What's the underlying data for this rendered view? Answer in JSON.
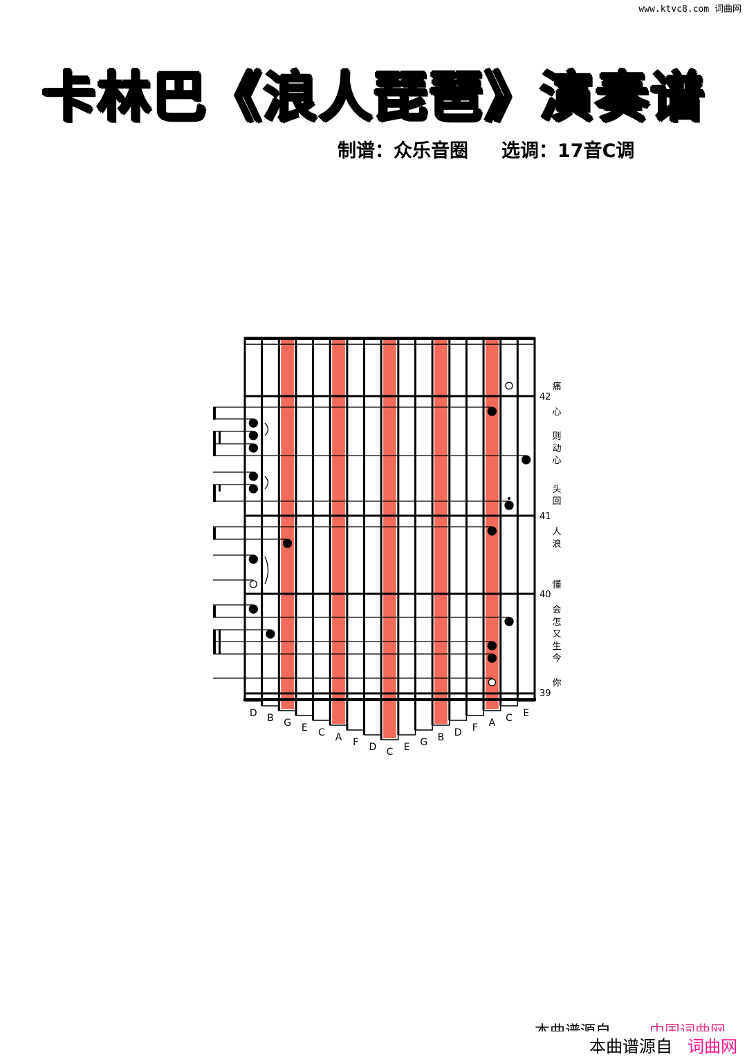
{
  "header": {
    "site": "www.ktvc8.com 词曲网"
  },
  "title": "卡林巴《浪人琵琶》演奏谱",
  "credits": {
    "arranger": "制谱：众乐音圈",
    "key": "选调：17音C调"
  },
  "score": {
    "keys": [
      "D",
      "B",
      "G",
      "E",
      "C",
      "A",
      "F",
      "D",
      "C",
      "E",
      "G",
      "B",
      "D",
      "F",
      "A",
      "C",
      "E"
    ],
    "highlighted_keys": [
      2,
      5,
      8,
      11,
      14
    ],
    "highlight_color": "#f26b5b",
    "measures": [
      "42",
      "41",
      "40",
      "39"
    ],
    "notes": [
      {
        "tine": 15,
        "type": "hollow"
      },
      {
        "tine": 14,
        "type": "filled"
      },
      {
        "tine": 0,
        "type": "filled"
      },
      {
        "tine": 0,
        "type": "filled"
      },
      {
        "tine": 0,
        "type": "filled"
      },
      {
        "tine": 16,
        "type": "filled"
      },
      {
        "tine": 0,
        "type": "filled"
      },
      {
        "tine": 0,
        "type": "filled"
      },
      {
        "tine": 15,
        "type": "filled",
        "high": true
      },
      {
        "tine": 14,
        "type": "filled"
      },
      {
        "tine": 2,
        "type": "filled"
      },
      {
        "tine": 0,
        "type": "filled"
      },
      {
        "tine": 0,
        "type": "hollow"
      },
      {
        "tine": 0,
        "type": "filled"
      },
      {
        "tine": 15,
        "type": "filled"
      },
      {
        "tine": 1,
        "type": "filled"
      },
      {
        "tine": 14,
        "type": "filled"
      },
      {
        "tine": 14,
        "type": "filled"
      },
      {
        "tine": 14,
        "type": "hollow"
      }
    ],
    "lyrics": [
      "痛",
      "心",
      "则",
      "动",
      "心",
      "头",
      "回",
      "人",
      "浪",
      "懂",
      "会",
      "怎",
      "又",
      "生",
      "今",
      "你"
    ]
  },
  "footer": {
    "line1_a": "本曲谱源自",
    "line1_b": "中国词曲网",
    "line2_a": "本曲谱源自",
    "line2_b": "词曲网"
  }
}
